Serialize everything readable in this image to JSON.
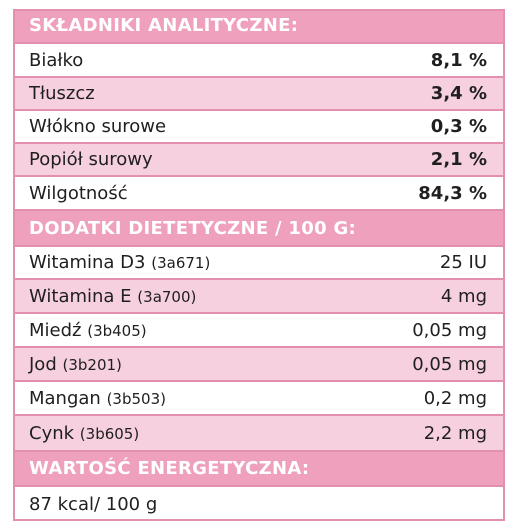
{
  "analytical": {
    "header": "SKŁADNIKI ANALITYCZNE:",
    "rows": [
      {
        "name": "Białko",
        "value": "8,1 %"
      },
      {
        "name": "Tłuszcz",
        "value": "3,4 %"
      },
      {
        "name": "Włókno surowe",
        "value": "0,3 %"
      },
      {
        "name": "Popiół surowy",
        "value": "2,1 %"
      },
      {
        "name": "Wilgotność",
        "value": "84,3 %"
      }
    ]
  },
  "additives": {
    "header": "DODATKI DIETETYCZNE / 100 G:",
    "rows": [
      {
        "name": "Witamina D3",
        "code": "(3a671)",
        "value": "25 IU"
      },
      {
        "name": "Witamina E",
        "code": "(3a700)",
        "value": "4 mg"
      },
      {
        "name": "Miedź",
        "code": "(3b405)",
        "value": "0,05 mg"
      },
      {
        "name": "Jod",
        "code": "(3b201)",
        "value": "0,05 mg"
      },
      {
        "name": "Mangan",
        "code": "(3b503)",
        "value": "0,2 mg"
      },
      {
        "name": "Cynk",
        "code": "(3b605)",
        "value": "2,2 mg"
      }
    ]
  },
  "energy": {
    "header": "WARTOŚĆ ENERGETYCZNA:",
    "value": "87 kcal/ 100 g"
  },
  "colors": {
    "header_bg": "#efa0bd",
    "stripe_bg": "#f6d0de",
    "border": "#e58fb0"
  }
}
